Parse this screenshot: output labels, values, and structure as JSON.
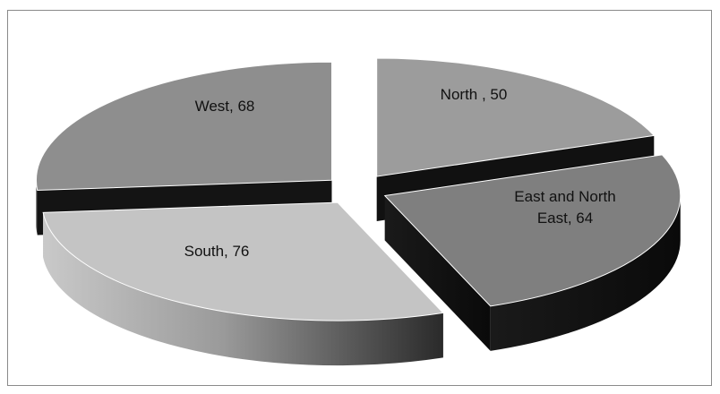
{
  "chart_data": {
    "type": "pie",
    "style": "3d-exploded",
    "title": "",
    "legend": "none",
    "categories": [
      "North",
      "East and North East",
      "South",
      "West"
    ],
    "values": [
      50,
      64,
      76,
      68
    ],
    "labels": [
      {
        "lines": [
          "North , 50"
        ]
      },
      {
        "lines": [
          "East and North",
          "East, 64"
        ]
      },
      {
        "lines": [
          "South, 76"
        ]
      },
      {
        "lines": [
          "West, 68"
        ]
      }
    ],
    "colors": {
      "North": {
        "top": "#9c9c9c",
        "side": "#111111"
      },
      "East and North East": {
        "top": "#7f7f7f",
        "side": "#0e0e0e"
      },
      "South": {
        "top": "#c4c4c4",
        "side_light": "#bdbdbd",
        "side_dark": "#3a3a3a"
      },
      "West": {
        "top": "#8e8e8e",
        "side": "#141414"
      }
    }
  }
}
